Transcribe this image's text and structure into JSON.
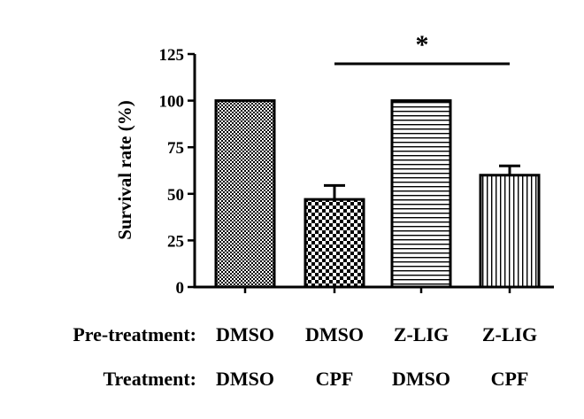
{
  "chart_data": {
    "type": "bar",
    "title": "",
    "xlabel": "",
    "ylabel": "Survival rate (%)",
    "ylim": [
      0,
      125
    ],
    "yticks": [
      0,
      25,
      50,
      75,
      100,
      125
    ],
    "grid": false,
    "legend": "none",
    "bars": [
      {
        "pretreatment": "DMSO",
        "treatment": "DMSO",
        "value": 100,
        "error": 0,
        "pattern": "fine-checker"
      },
      {
        "pretreatment": "DMSO",
        "treatment": "CPF",
        "value": 47,
        "error": 7.5,
        "pattern": "coarse-checker"
      },
      {
        "pretreatment": "Z-LIG",
        "treatment": "DMSO",
        "value": 100,
        "error": 0,
        "pattern": "horizontal-lines"
      },
      {
        "pretreatment": "Z-LIG",
        "treatment": "CPF",
        "value": 60,
        "error": 5,
        "pattern": "vertical-lines"
      }
    ],
    "significance": {
      "from_bar": 1,
      "to_bar": 3,
      "label": "*"
    },
    "row_labels": {
      "pretreatment": "Pre-treatment:",
      "treatment": "Treatment:"
    }
  }
}
